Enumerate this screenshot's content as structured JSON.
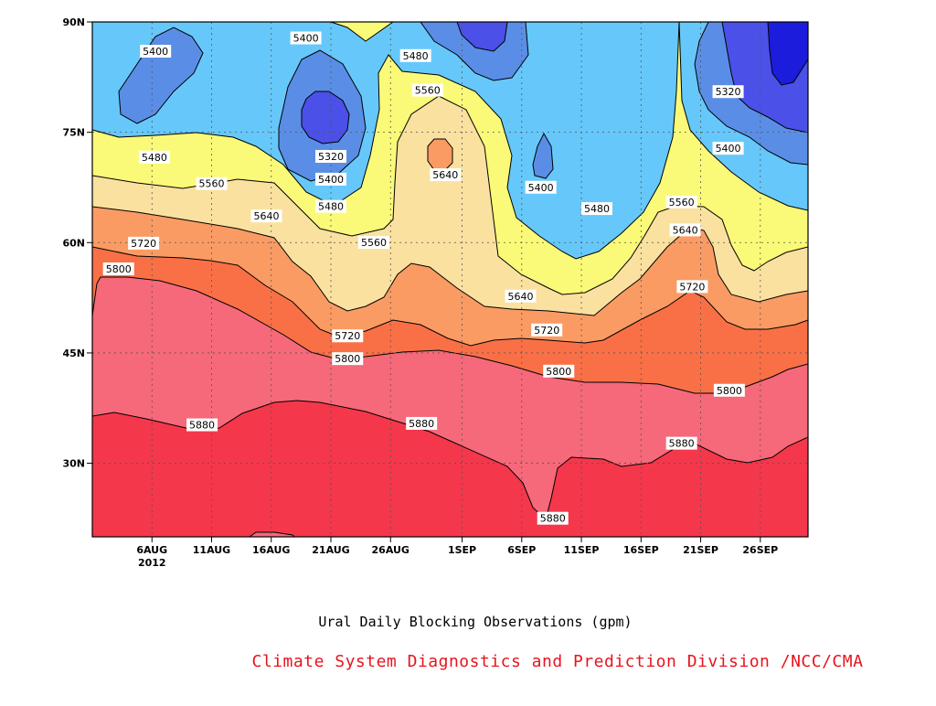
{
  "chart_data": {
    "type": "contour",
    "title": "Ural Daily Blocking Observations (gpm)",
    "credit": "Climate System Diagnostics and Prediction Division /NCC/CMA",
    "x_axis": {
      "ticks": [
        {
          "label": "6AUG",
          "sublabel": "2012",
          "day": 5
        },
        {
          "label": "11AUG",
          "day": 10
        },
        {
          "label": "16AUG",
          "day": 15
        },
        {
          "label": "21AUG",
          "day": 20
        },
        {
          "label": "26AUG",
          "day": 25
        },
        {
          "label": "1SEP",
          "day": 31
        },
        {
          "label": "6SEP",
          "day": 36
        },
        {
          "label": "11SEP",
          "day": 41
        },
        {
          "label": "16SEP",
          "day": 46
        },
        {
          "label": "21SEP",
          "day": 51
        },
        {
          "label": "26SEP",
          "day": 56
        }
      ],
      "range_days": [
        0,
        60
      ]
    },
    "y_axis": {
      "ticks": [
        {
          "label": "30N",
          "lat": 30
        },
        {
          "label": "45N",
          "lat": 45
        },
        {
          "label": "60N",
          "lat": 60
        },
        {
          "label": "75N",
          "lat": 75
        },
        {
          "label": "90N",
          "lat": 90
        }
      ],
      "range_lat": [
        20,
        90
      ]
    },
    "grid": true,
    "levels": [
      {
        "range": "<5320",
        "color": "#1c1cdc"
      },
      {
        "range": "5320-5400",
        "color": "#4a50e8"
      },
      {
        "range": "5400-5480",
        "color": "#5a8ee6"
      },
      {
        "range": "5480",
        "color": "#66c8fa"
      },
      {
        "range": "5480-5560",
        "color": "#fafa78"
      },
      {
        "range": "5560-5640",
        "color": "#fae1a0"
      },
      {
        "range": "5640-5720",
        "color": "#fa9b64"
      },
      {
        "range": "5720-5800",
        "color": "#fa7046"
      },
      {
        "range": "5800-5880",
        "color": "#f5697a"
      },
      {
        "range": ">5880",
        "color": "#f5374b"
      }
    ],
    "contour_labels": [
      {
        "text": "5400",
        "day": 5.3,
        "lat": 85.9
      },
      {
        "text": "5400",
        "day": 17.9,
        "lat": 87.7
      },
      {
        "text": "5480",
        "day": 27.1,
        "lat": 85.3
      },
      {
        "text": "5560",
        "day": 28.1,
        "lat": 80.6
      },
      {
        "text": "5320",
        "day": 20.0,
        "lat": 71.6
      },
      {
        "text": "5400",
        "day": 20.0,
        "lat": 68.5
      },
      {
        "text": "5480",
        "day": 20.0,
        "lat": 64.8
      },
      {
        "text": "5640",
        "day": 29.6,
        "lat": 69.1
      },
      {
        "text": "5400",
        "day": 37.6,
        "lat": 67.4
      },
      {
        "text": "5480",
        "day": 42.3,
        "lat": 64.5
      },
      {
        "text": "5320",
        "day": 53.3,
        "lat": 80.4
      },
      {
        "text": "5400",
        "day": 53.3,
        "lat": 72.7
      },
      {
        "text": "5480",
        "day": 5.2,
        "lat": 71.5
      },
      {
        "text": "5560",
        "day": 10.0,
        "lat": 67.9
      },
      {
        "text": "5640",
        "day": 14.6,
        "lat": 63.5
      },
      {
        "text": "5720",
        "day": 4.3,
        "lat": 59.8
      },
      {
        "text": "5800",
        "day": 2.2,
        "lat": 56.3
      },
      {
        "text": "5560",
        "day": 23.6,
        "lat": 59.9
      },
      {
        "text": "5720",
        "day": 21.4,
        "lat": 47.2
      },
      {
        "text": "5800",
        "day": 21.4,
        "lat": 44.1
      },
      {
        "text": "5640",
        "day": 35.9,
        "lat": 52.6
      },
      {
        "text": "5720",
        "day": 38.1,
        "lat": 48.0
      },
      {
        "text": "5800",
        "day": 39.1,
        "lat": 42.4
      },
      {
        "text": "5560",
        "day": 49.4,
        "lat": 65.4
      },
      {
        "text": "5640",
        "day": 49.7,
        "lat": 61.6
      },
      {
        "text": "5720",
        "day": 50.3,
        "lat": 53.9
      },
      {
        "text": "5800",
        "day": 53.4,
        "lat": 39.8
      },
      {
        "text": "5880",
        "day": 9.2,
        "lat": 35.1
      },
      {
        "text": "5880",
        "day": 27.6,
        "lat": 35.3
      },
      {
        "text": "5880",
        "day": 49.4,
        "lat": 32.6
      },
      {
        "text": "5880",
        "day": 38.6,
        "lat": 22.4
      }
    ]
  }
}
